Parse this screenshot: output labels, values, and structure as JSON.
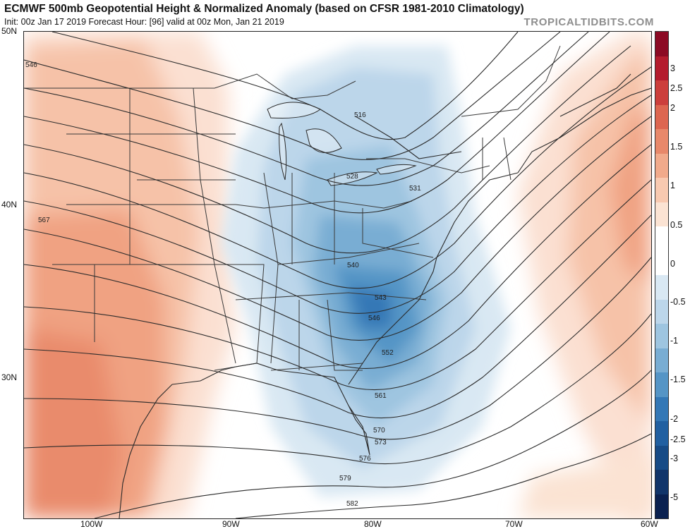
{
  "header": {
    "title": "ECMWF 500mb Geopotential Height & Normalized Anomaly (based on CFSR 1981-2010 Climatology)",
    "subtitle": "Init: 00z Jan 17 2019   Forecast Hour: [96]   valid at 00z Mon, Jan 21 2019",
    "brand": "TROPICALTIDBITS.COM"
  },
  "axes": {
    "lat_labels": [
      "50N",
      "40N",
      "30N"
    ],
    "lon_labels": [
      "100W",
      "90W",
      "80W",
      "70W",
      "60W"
    ]
  },
  "contour_labels": [
    "546",
    "516",
    "528",
    "531",
    "567",
    "540",
    "543",
    "546",
    "552",
    "561",
    "570",
    "573",
    "576",
    "579",
    "582"
  ],
  "colorbar": {
    "labels": [
      "3",
      "2.5",
      "2",
      "1.5",
      "1",
      "0.5",
      "0",
      "-0.5",
      "-1",
      "-1.5",
      "-2",
      "-2.5",
      "-3",
      "-5"
    ],
    "colors": [
      "#8c0a24",
      "#b41c2e",
      "#cc3f3c",
      "#dd6650",
      "#e8886a",
      "#f1aa8b",
      "#f8c9b0",
      "#fbe3d3",
      "#ffffff",
      "#ffffff",
      "#d9e8f3",
      "#bcd6ea",
      "#9ec5e0",
      "#79add3",
      "#5595c6",
      "#3478b6",
      "#2160a1",
      "#174b86",
      "#11356a",
      "#0a2150"
    ]
  },
  "colors": {
    "positive_anomaly": "#f0a282",
    "negative_anomaly": "#3f87c3",
    "contour": "#2b2b2b",
    "border": "#3a3a3a"
  }
}
